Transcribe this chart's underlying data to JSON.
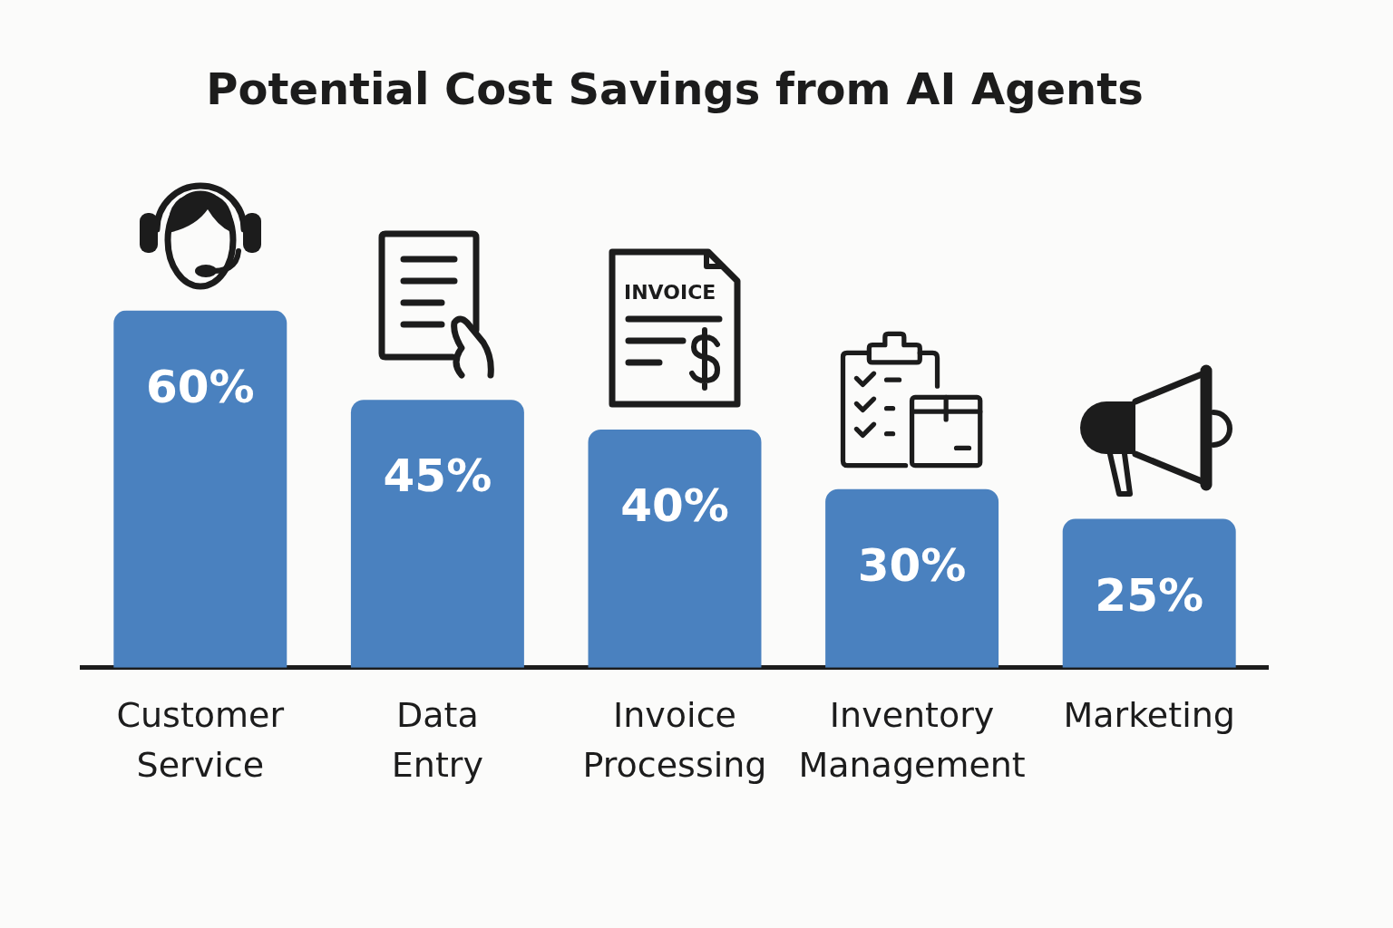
{
  "chart_data": {
    "type": "bar",
    "title": "Potential Cost Savings from AI Agents",
    "categories": [
      "Customer Service",
      "Data Entry",
      "Invoice Processing",
      "Inventory Management",
      "Marketing"
    ],
    "values": [
      60,
      45,
      40,
      30,
      25
    ],
    "color": "#4a81bf",
    "value_labels": [
      "60%",
      "45%",
      "40%",
      "30%",
      "25%"
    ],
    "annotations": [
      "INVOICE"
    ],
    "tick_labels": "x"
  }
}
